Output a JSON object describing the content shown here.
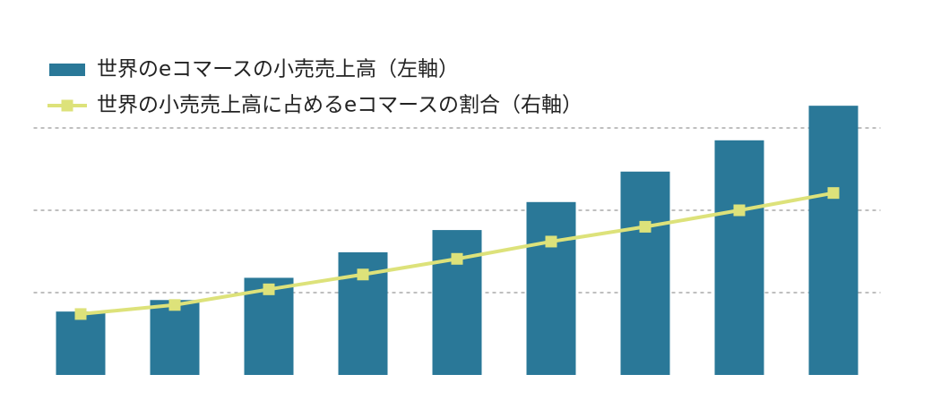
{
  "chart_data": {
    "type": "bar_line",
    "categories": [
      null,
      null,
      null,
      null,
      null,
      null,
      null,
      null,
      null
    ],
    "series": [
      {
        "name": "世界のeコマースの小売売上高（左軸）",
        "type": "bar",
        "color": "#2a7898",
        "values": [
          0.77,
          0.91,
          1.18,
          1.49,
          1.76,
          2.1,
          2.47,
          2.85,
          3.27
        ]
      },
      {
        "name": "世界の小売売上高に占めるeコマースの割合（右軸）",
        "type": "line",
        "axis": "y2",
        "color": "#dde27a",
        "values": [
          0.74,
          0.85,
          1.04,
          1.22,
          1.41,
          1.62,
          1.8,
          2.0,
          2.21
        ]
      }
    ],
    "ylim": [
      0,
      3.5
    ],
    "yticks": [
      1,
      2,
      3
    ],
    "y2lim": [
      0,
      3.5
    ],
    "grid": true,
    "legend": "top-left"
  }
}
